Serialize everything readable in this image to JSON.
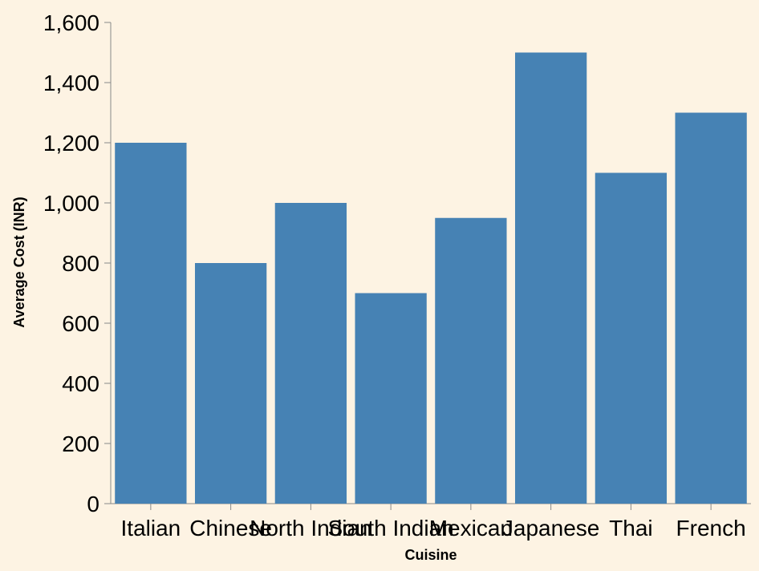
{
  "colors": {
    "background": "#fdf3e3",
    "bar": "#4682b4",
    "axis": "#888888",
    "text": "#000000"
  },
  "chart_data": {
    "type": "bar",
    "categories": [
      "Italian",
      "Chinese",
      "North Indian",
      "South Indian",
      "Mexican",
      "Japanese",
      "Thai",
      "French"
    ],
    "values": [
      1200,
      800,
      1000,
      700,
      950,
      1500,
      1100,
      1300
    ],
    "xlabel": "Cuisine",
    "ylabel": "Average Cost (INR)",
    "ylim": [
      0,
      1600
    ],
    "yticks": [
      0,
      200,
      400,
      600,
      800,
      1000,
      1200,
      1400,
      1600
    ],
    "ytick_labels": [
      "0",
      "200",
      "400",
      "600",
      "800",
      "1,000",
      "1,200",
      "1,400",
      "1,600"
    ],
    "grid": false,
    "legend": "none"
  }
}
